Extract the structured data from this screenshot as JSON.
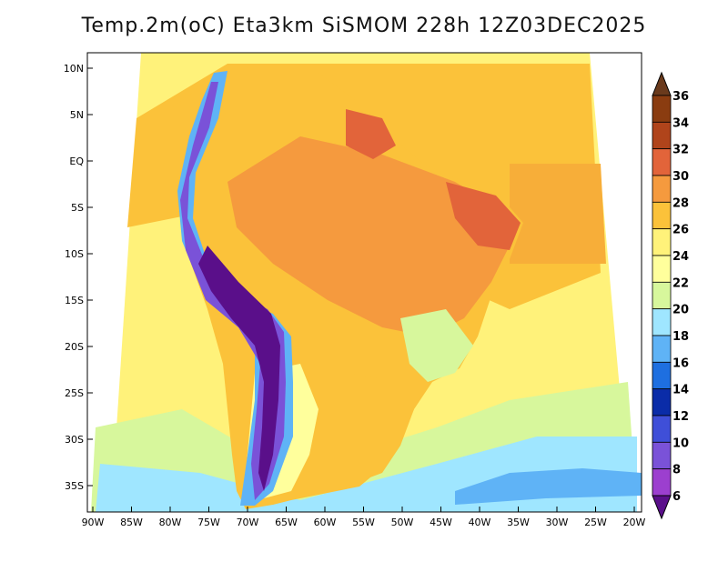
{
  "map": {
    "title": "Temp.2m(oC) Eta3km SiSMOM 228h 12Z03DEC2025",
    "lat_ticks": [
      "10N",
      "5N",
      "EQ",
      "5S",
      "10S",
      "15S",
      "20S",
      "25S",
      "30S",
      "35S"
    ],
    "lon_ticks": [
      "90W",
      "85W",
      "80W",
      "75W",
      "70W",
      "65W",
      "60W",
      "55W",
      "50W",
      "45W",
      "40W",
      "35W",
      "30W",
      "25W",
      "20W"
    ]
  },
  "colorbar": {
    "labels": [
      "36",
      "34",
      "32",
      "30",
      "28",
      "26",
      "24",
      "22",
      "20",
      "18",
      "16",
      "14",
      "12",
      "10",
      "8",
      "6"
    ],
    "colors": [
      "#6a3a1c",
      "#8a3c10",
      "#b0441b",
      "#e2643a",
      "#f59a3e",
      "#fbc23a",
      "#fff27a",
      "#ffff9c",
      "#d7f79c",
      "#9fe6ff",
      "#5fb3f6",
      "#1e6fe0",
      "#0a2ca8",
      "#3f4fd8",
      "#7a52d8",
      "#9c3fcf",
      "#5a0f8a"
    ]
  }
}
